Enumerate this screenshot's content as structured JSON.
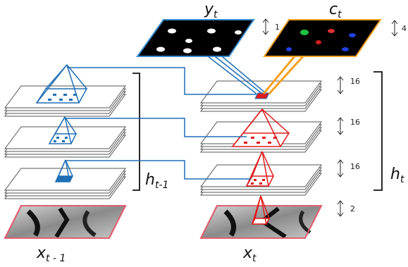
{
  "labels": {
    "y_main": "y",
    "y_sub": "t",
    "c_main": "c",
    "c_sub": "t",
    "ht_main": "h",
    "ht_sub": "t",
    "htm1_main": "h",
    "htm1_sub": "t-1",
    "xt_main": "x",
    "xt_sub": "t",
    "xtm1_main": "x",
    "xtm1_sub": "t - 1"
  },
  "channel_counts": {
    "y": "1",
    "c": "4",
    "layer1": "16",
    "layer2": "16",
    "layer3": "16",
    "x": "2"
  },
  "colors": {
    "blue": "#1f6fb5",
    "red": "#e01b1b",
    "orange": "#f5a020",
    "frame": "#555555",
    "bracket": "#111111"
  }
}
